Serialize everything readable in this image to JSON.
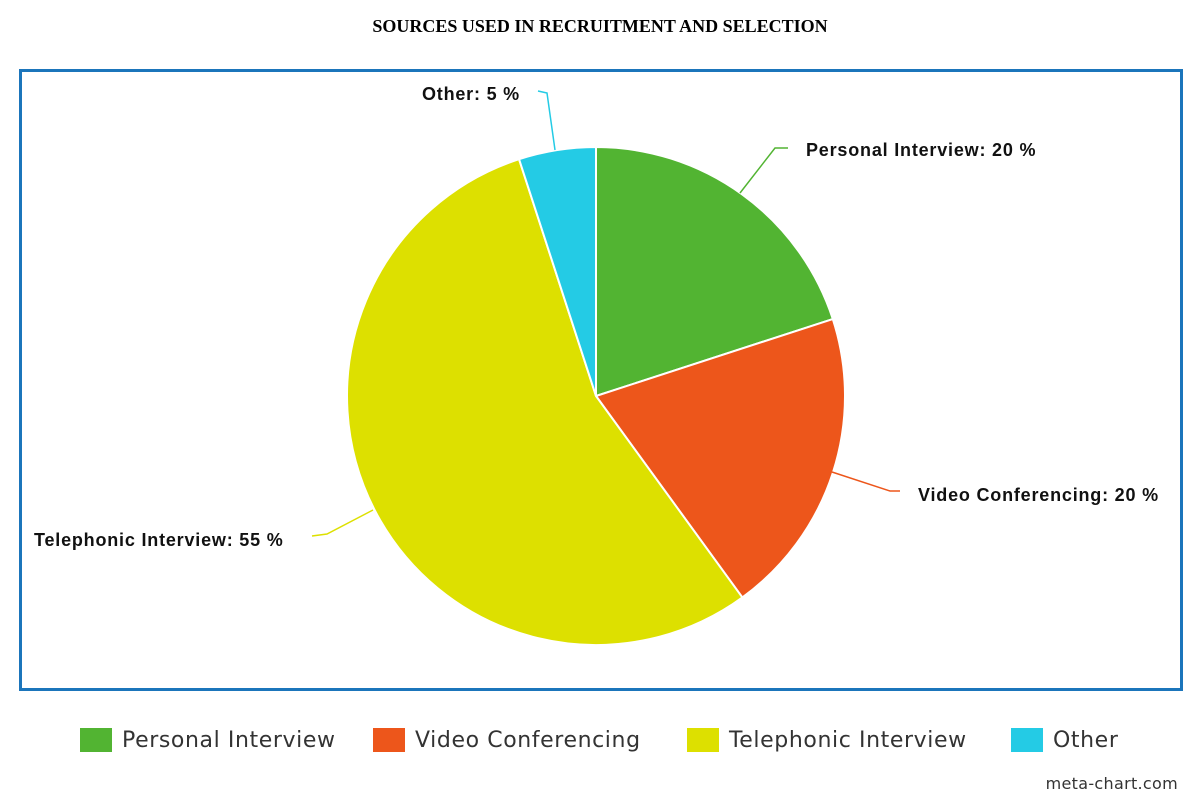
{
  "chart_data": {
    "type": "pie",
    "title": "SOURCES USED IN RECRUITMENT AND SELECTION",
    "categories": [
      "Personal Interview",
      "Video Conferencing",
      "Telephonic Interview",
      "Other"
    ],
    "values": [
      20,
      20,
      55,
      5
    ],
    "slice_labels": [
      "Personal Interview: 20 %",
      "Video Conferencing: 20 %",
      "Telephonic Interview: 55 %",
      "Other: 5 %"
    ],
    "colors": [
      "#52b432",
      "#ed561b",
      "#dde000",
      "#24cbe5"
    ],
    "legend_position": "bottom",
    "start": "top, clockwise"
  },
  "watermark": "meta-chart.com"
}
